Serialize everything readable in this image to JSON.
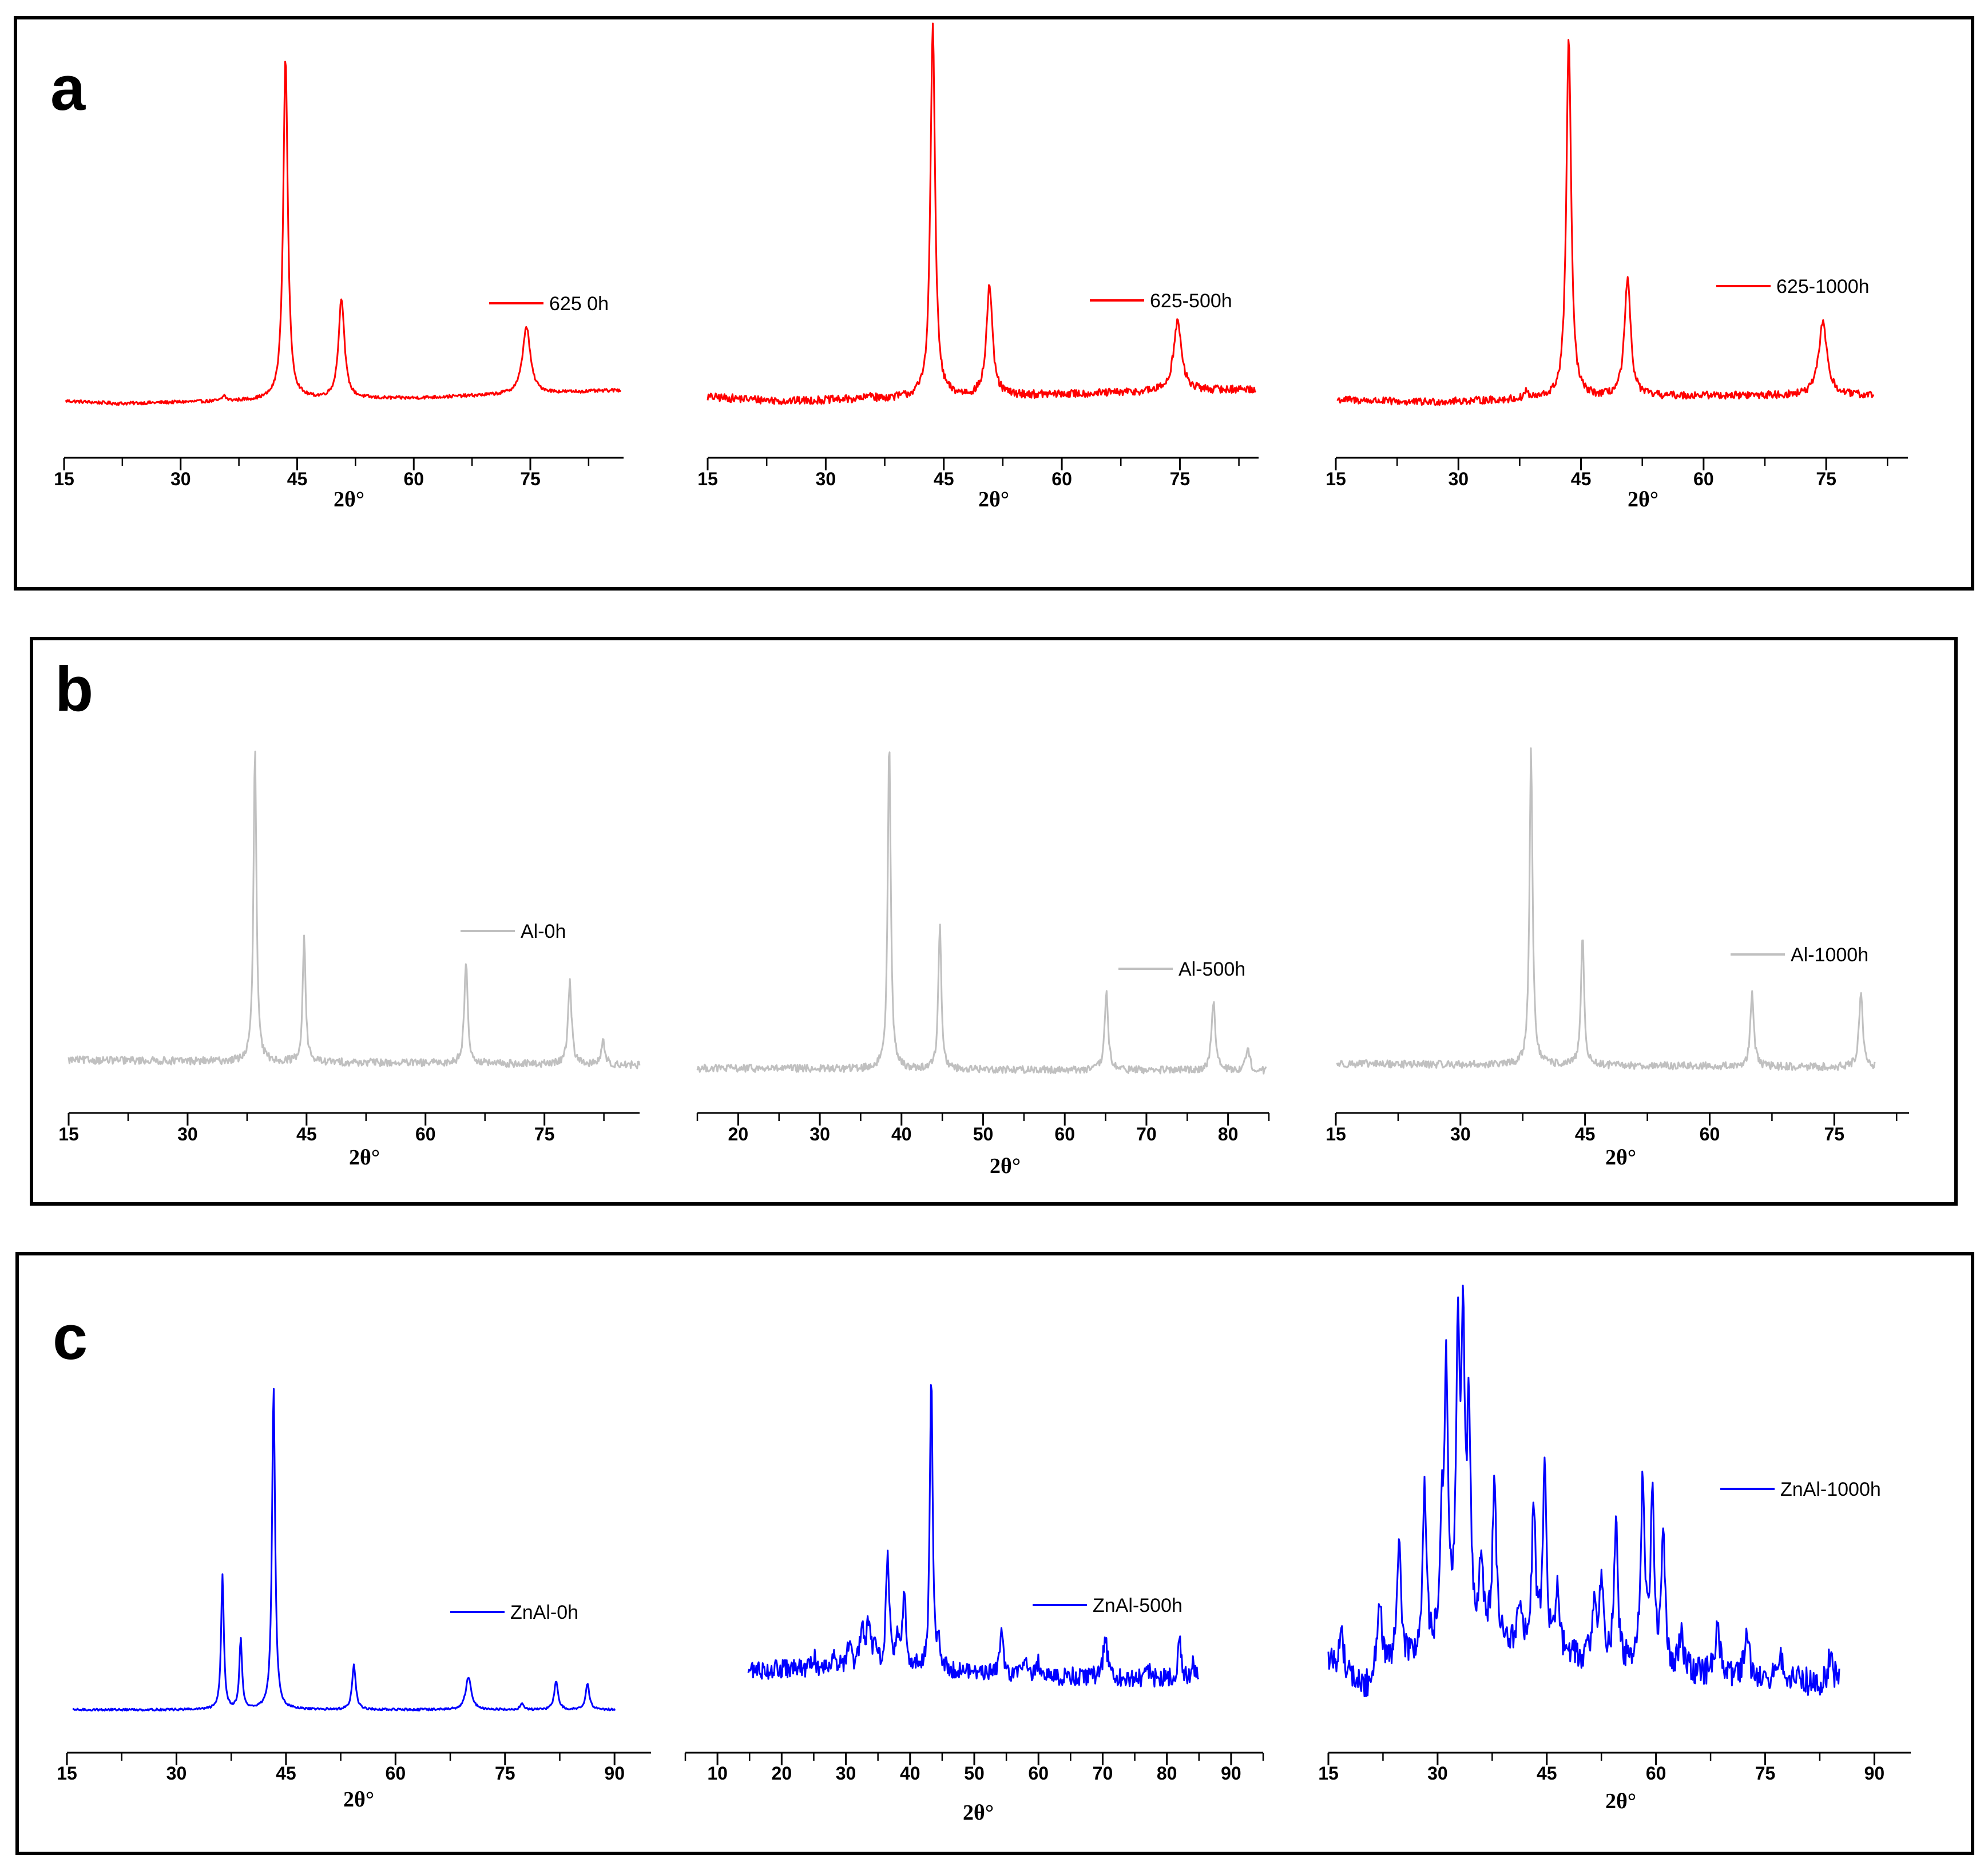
{
  "panels": [
    {
      "letter": "a",
      "color": "#ff0000"
    },
    {
      "letter": "b",
      "color": "#c0c0c0"
    },
    {
      "letter": "c",
      "color": "#0000ff"
    }
  ],
  "chart_data": [
    {
      "panel": "a",
      "type": "line",
      "color": "#ff0000",
      "xlabel": "2θ°",
      "xlim": [
        15,
        87
      ],
      "xticks": [
        15,
        30,
        45,
        60,
        75
      ],
      "series": [
        {
          "name": "625 0h"
        }
      ],
      "legend": "right",
      "noise": 1.2,
      "baseline": [
        [
          15,
          4
        ],
        [
          22,
          2
        ],
        [
          45,
          5
        ],
        [
          60,
          6
        ],
        [
          87,
          12
        ]
      ],
      "peaks": [
        [
          35.6,
          4,
          0.25
        ],
        [
          43.5,
          255,
          0.35
        ],
        [
          50.7,
          75,
          0.45
        ],
        [
          74.5,
          50,
          0.6
        ]
      ]
    },
    {
      "panel": "a",
      "type": "line",
      "color": "#ff0000",
      "xlabel": "2θ°",
      "xlim": [
        15,
        85
      ],
      "xticks": [
        15,
        30,
        45,
        60,
        75
      ],
      "series": [
        {
          "name": "625-500h"
        }
      ],
      "legend": "right",
      "noise": 3,
      "baseline": [
        [
          15,
          6
        ],
        [
          25,
          3
        ],
        [
          45,
          6
        ],
        [
          60,
          8
        ],
        [
          85,
          12
        ]
      ],
      "peaks": [
        [
          35.7,
          4,
          0.25
        ],
        [
          43.6,
          278,
          0.35
        ],
        [
          50.8,
          82,
          0.45
        ],
        [
          74.7,
          52,
          0.6
        ]
      ]
    },
    {
      "panel": "a",
      "type": "line",
      "color": "#ff0000",
      "xlabel": "2θ°",
      "xlim": [
        15,
        85
      ],
      "xticks": [
        15,
        30,
        45,
        60,
        75
      ],
      "series": [
        {
          "name": "625-1000h"
        }
      ],
      "legend": "right",
      "noise": 2.8,
      "baseline": [
        [
          15,
          5
        ],
        [
          25,
          3
        ],
        [
          45,
          6
        ],
        [
          60,
          8
        ],
        [
          85,
          8
        ]
      ],
      "peaks": [
        [
          38.3,
          6,
          0.25
        ],
        [
          43.5,
          268,
          0.35
        ],
        [
          50.7,
          87,
          0.45
        ],
        [
          74.6,
          55,
          0.6
        ]
      ]
    },
    {
      "panel": "b",
      "type": "line",
      "color": "#c0c0c0",
      "xlabel": "2θ°",
      "xlim": [
        15,
        87
      ],
      "xticks": [
        15,
        30,
        45,
        60,
        75
      ],
      "series": [
        {
          "name": "Al-0h"
        }
      ],
      "legend": "right",
      "noise": 3,
      "baseline": [
        [
          15,
          8
        ],
        [
          87,
          4
        ]
      ],
      "peaks": [
        [
          38.5,
          250,
          0.22
        ],
        [
          44.7,
          100,
          0.22
        ],
        [
          65.1,
          82,
          0.25
        ],
        [
          78.2,
          65,
          0.28
        ],
        [
          82.4,
          18,
          0.28
        ]
      ]
    },
    {
      "panel": "b",
      "type": "line",
      "color": "#c0c0c0",
      "xlabel": "2θ°",
      "xlim": [
        15,
        85
      ],
      "xticks": [
        20,
        30,
        40,
        50,
        60,
        70,
        80
      ],
      "series": [
        {
          "name": "Al-500h"
        }
      ],
      "legend": "right",
      "noise": 3,
      "baseline": [
        [
          15,
          6
        ],
        [
          85,
          4
        ]
      ],
      "peaks": [
        [
          38.5,
          262,
          0.22
        ],
        [
          44.7,
          115,
          0.22
        ],
        [
          65.1,
          62,
          0.25
        ],
        [
          78.2,
          55,
          0.28
        ],
        [
          82.4,
          18,
          0.28
        ]
      ]
    },
    {
      "panel": "b",
      "type": "line",
      "color": "#c0c0c0",
      "xlabel": "2θ°",
      "xlim": [
        15,
        84
      ],
      "xticks": [
        15,
        30,
        45,
        60,
        75
      ],
      "series": [
        {
          "name": "Al-1000h"
        }
      ],
      "legend": "right",
      "noise": 3,
      "baseline": [
        [
          15,
          5
        ],
        [
          84,
          2
        ]
      ],
      "peaks": [
        [
          38.5,
          252,
          0.22
        ],
        [
          44.7,
          105,
          0.22
        ],
        [
          65.1,
          58,
          0.25
        ],
        [
          78.2,
          58,
          0.28
        ]
      ]
    },
    {
      "panel": "c",
      "type": "line",
      "color": "#0000ff",
      "xlabel": "2θ°",
      "xlim": [
        15,
        95
      ],
      "xticks": [
        15,
        30,
        45,
        60,
        75,
        90
      ],
      "series": [
        {
          "name": "ZnAl-0h"
        }
      ],
      "legend": "right",
      "noise": 0.9,
      "baseline": [
        [
          15,
          1
        ],
        [
          95,
          1
        ]
      ],
      "peaks": [
        [
          36.3,
          115,
          0.22
        ],
        [
          38.8,
          60,
          0.22
        ],
        [
          43.3,
          275,
          0.25
        ],
        [
          54.3,
          38,
          0.3
        ],
        [
          70.0,
          28,
          0.45
        ],
        [
          77.3,
          5,
          0.3
        ],
        [
          82.0,
          25,
          0.3
        ],
        [
          86.3,
          22,
          0.3
        ]
      ]
    },
    {
      "panel": "c",
      "type": "line",
      "color": "#0000ff",
      "xlabel": "2θ°",
      "xlim": [
        5,
        95
      ],
      "xticks": [
        10,
        20,
        30,
        40,
        50,
        60,
        70,
        80,
        90
      ],
      "series": [
        {
          "name": "ZnAl-500h"
        }
      ],
      "legend": "right",
      "noise": 8,
      "baseline": [
        [
          15,
          20
        ],
        [
          30,
          22
        ],
        [
          45,
          20
        ],
        [
          60,
          15
        ],
        [
          85,
          12
        ]
      ],
      "peaks": [
        [
          25,
          10,
          0.3
        ],
        [
          28,
          15,
          0.3
        ],
        [
          30.5,
          18,
          0.35
        ],
        [
          32.5,
          30,
          0.35
        ],
        [
          33.5,
          35,
          0.35
        ],
        [
          34.5,
          20,
          0.3
        ],
        [
          36.5,
          98,
          0.3
        ],
        [
          38.0,
          25,
          0.3
        ],
        [
          39.1,
          65,
          0.3
        ],
        [
          43.3,
          258,
          0.25
        ],
        [
          44.5,
          15,
          0.3
        ],
        [
          54.3,
          38,
          0.3
        ],
        [
          58.0,
          18,
          0.3
        ],
        [
          60.0,
          12,
          0.3
        ],
        [
          70.4,
          38,
          0.35
        ],
        [
          77.0,
          10,
          0.3
        ],
        [
          82.0,
          32,
          0.3
        ],
        [
          84.0,
          12,
          0.3
        ]
      ]
    },
    {
      "panel": "c",
      "type": "line",
      "color": "#0000ff",
      "xlabel": "2θ°",
      "xlim": [
        15,
        95
      ],
      "xticks": [
        15,
        30,
        45,
        60,
        75,
        90
      ],
      "series": [
        {
          "name": "ZnAl-1000h"
        }
      ],
      "legend": "right",
      "noise": 12,
      "baseline": [
        [
          15,
          40
        ],
        [
          20,
          15
        ],
        [
          25,
          35
        ],
        [
          35,
          60
        ],
        [
          50,
          40
        ],
        [
          65,
          30
        ],
        [
          85,
          20
        ]
      ],
      "peaks": [
        [
          16.8,
          30,
          0.4
        ],
        [
          22.0,
          70,
          0.4
        ],
        [
          24.7,
          100,
          0.35
        ],
        [
          28.2,
          140,
          0.3
        ],
        [
          30.6,
          90,
          0.3
        ],
        [
          31.2,
          220,
          0.3
        ],
        [
          32.8,
          250,
          0.28
        ],
        [
          33.5,
          240,
          0.28
        ],
        [
          34.3,
          180,
          0.28
        ],
        [
          36.0,
          60,
          0.3
        ],
        [
          37.8,
          130,
          0.3
        ],
        [
          41.2,
          35,
          0.3
        ],
        [
          43.2,
          120,
          0.3
        ],
        [
          44.7,
          150,
          0.3
        ],
        [
          46.5,
          60,
          0.3
        ],
        [
          51.5,
          50,
          0.35
        ],
        [
          52.5,
          70,
          0.3
        ],
        [
          54.5,
          120,
          0.3
        ],
        [
          58.2,
          160,
          0.3
        ],
        [
          59.5,
          140,
          0.3
        ],
        [
          61.0,
          110,
          0.3
        ],
        [
          63.5,
          30,
          0.35
        ],
        [
          68.5,
          40,
          0.35
        ],
        [
          72.5,
          40,
          0.35
        ],
        [
          77.0,
          25,
          0.35
        ],
        [
          84.0,
          30,
          0.35
        ]
      ]
    }
  ]
}
